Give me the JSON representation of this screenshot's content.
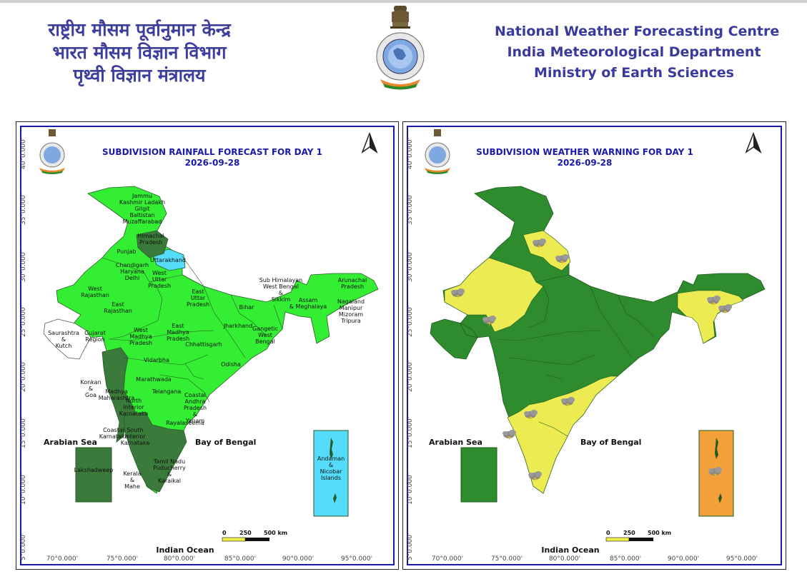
{
  "header": {
    "hindi_lines": [
      "राष्ट्रीय मौसम पूर्वानुमान केन्द्र",
      "भारत मौसम विज्ञान विभाग",
      "पृथ्वी विज्ञान मंत्रालय"
    ],
    "english_lines": [
      "National Weather Forecasting Centre",
      "India Meteorological Department",
      "Ministry of Earth Sciences"
    ],
    "emblem_icon": "imd-emblem-icon"
  },
  "axes": {
    "lon_labels": [
      "70°0.000'",
      "75°0.000'",
      "80°0.000'",
      "85°0.000'",
      "90°0.000'",
      "95°0.000'"
    ],
    "lat_labels": [
      "40°0.000'",
      "35°0.000'",
      "30°0.000'",
      "25°0.000'",
      "20°0.000'",
      "15°0.000'",
      "10°0.000'",
      "5°0.000'"
    ]
  },
  "rainfall_map": {
    "title": "SUBDIVISION RAINFALL FORECAST FOR DAY 1",
    "date": "2026-09-28",
    "seas": {
      "arabian": "Arabian Sea",
      "bengal": "Bay of Bengal",
      "indian": "Indian Ocean"
    },
    "scale": {
      "zero": "0",
      "mid": "250",
      "end": "500 km"
    },
    "colors": {
      "light_green": "#33ee33",
      "dark_green": "#3a7a3a",
      "sky_blue": "#55dcfa",
      "white": "#ffffff"
    },
    "labels": {
      "jk": "Jammu\nKashmir Ladakh\nGilgit\nBaltistan\nMuzaffarabad",
      "hp": "Himachal\nPradesh",
      "punjab": "Punjab",
      "uk": "Uttarakhand",
      "chd": "Chandigarh\nHaryana\nDelhi",
      "wup": "West\nUttar\nPradesh",
      "wraj": "West\nRajasthan",
      "eraj": "East\nRajasthan",
      "eup": "East\nUttar\nPradesh",
      "bihar": "Bihar",
      "shwb": "Sub Himalayan\nWest Bengal\n&\nSikkim",
      "arun": "Arunachal\nPradesh",
      "assam": "Assam\n& Meghalaya",
      "nmmt": "Nagaland\nManipur\nMizoram\nTripura",
      "sk": "Saurashtra\n&\nKutch",
      "guj": "Gujarat\nRegion",
      "wmp": "West\nMadhya\nPradesh",
      "emp": "East\nMadhya\nPradesh",
      "jh": "Jharkhand",
      "gwb": "Gangetic\nWest\nBengal",
      "chh": "Chhattisgarh",
      "vid": "Vidarbha",
      "odisha": "Odisha",
      "mar": "Marathwada",
      "konkan": "Konkan\n&\nGoa",
      "mm": "Madhya\nMaharashtra",
      "tel": "Telangana",
      "nik": "North\nInterior\nKarnataka",
      "cap": "Coastal\nAndhra\nPradesh\n&\nYanam",
      "rayal": "Rayalaseema",
      "cst": "Coastal\nKarnataka",
      "sik": "South\nInterior\nKarnataka",
      "tn": "Tamil Nadu\nPuducherry\n&\nKaraikal",
      "kerala": "Kerala\n&\nMahe",
      "lak": "Lakshadweep",
      "anda": "Andaman\n&\nNicobar\nIslands"
    }
  },
  "warning_map": {
    "title": "SUBDIVISION WEATHER WARNING FOR DAY 1",
    "date": "2026-09-28",
    "seas": {
      "arabian": "Arabian Sea",
      "bengal": "Bay of Bengal",
      "indian": "Indian Ocean"
    },
    "scale": {
      "zero": "0",
      "mid": "250",
      "end": "500 km"
    },
    "colors": {
      "green": "#2e8b2e",
      "yellow": "#ecec52",
      "orange": "#f3a03a"
    },
    "warning_icon": "thunderstorm-cloud-icon"
  }
}
